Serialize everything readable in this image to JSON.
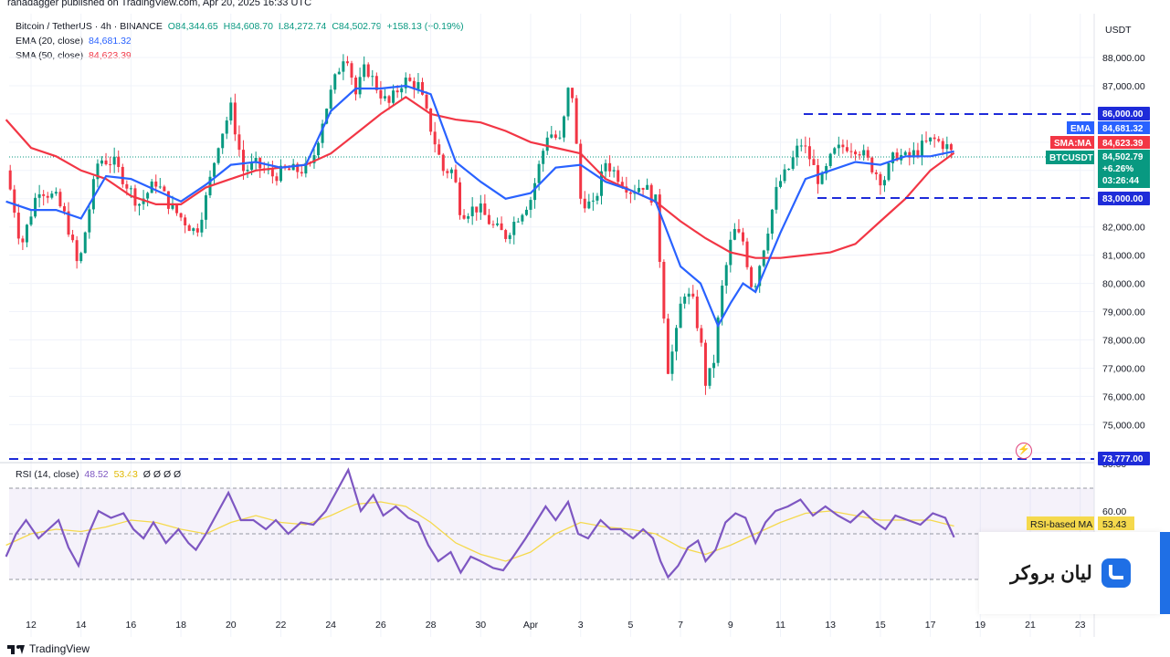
{
  "header": {
    "published": "ranadagger published on TradingView.com, Apr 20, 2025 16:33 UTC",
    "symbol": "Bitcoin / TetherUS · 4h · BINANCE",
    "open": "O84,344.65",
    "high": "H84,608.70",
    "low": "L84,272.74",
    "close": "C84,502.79",
    "change": "+158.13 (+0.19%)",
    "ema_label": "EMA (20, close)",
    "ema_value": "84,681.32",
    "sma_label": "SMA (50, close)",
    "sma_value": "84,623.39"
  },
  "rsi_legend": {
    "label": "RSI (14, close)",
    "rsi_value": "48.52",
    "ma_value": "53.43",
    "extra": "Ø Ø Ø Ø"
  },
  "price_axis": {
    "currency": "USDT",
    "ticks": [
      "88,000.00",
      "87,000.00",
      "86,000.00",
      "85,000.00",
      "84,000.00",
      "83,000.00",
      "82,000.00",
      "81,000.00",
      "80,000.00",
      "79,000.00",
      "78,000.00",
      "77,000.00",
      "76,000.00",
      "75,000.00",
      "74,000.00"
    ],
    "labels": {
      "resistance": "86,000.00",
      "support": "83,000.00",
      "bottom": "73,777.00",
      "ema_tag": "EMA",
      "ema_val": "84,681.32",
      "sma_tag": "SMA:MA",
      "sma_val": "84,623.39",
      "sym_tag": "BTCUSDT",
      "price_val": "84,502.79",
      "pct_val": "+6.26%",
      "timer_val": "03:26:44"
    }
  },
  "rsi_axis": {
    "ticks": [
      "80.00",
      "60.00"
    ],
    "rsi_ma_tag": "RSI-based MA",
    "rsi_ma_val": "53.43"
  },
  "time_axis": {
    "labels": [
      "12",
      "14",
      "16",
      "18",
      "20",
      "22",
      "24",
      "26",
      "28",
      "30",
      "Apr",
      "3",
      "5",
      "7",
      "9",
      "11",
      "13",
      "15",
      "17",
      "19",
      "21",
      "23"
    ]
  },
  "broker": {
    "name": "لیان بروکر"
  },
  "footer": {
    "brand": "TradingView"
  },
  "colors": {
    "up": "#089981",
    "down": "#f23645",
    "ema": "#2962ff",
    "sma": "#f23645",
    "rsi": "#7e57c2",
    "rsi_ma": "#f5d94c",
    "level": "#1e2bd9"
  },
  "chart_data": {
    "type": "candlestick",
    "timeframe": "4h",
    "y_range": [
      74000,
      88500
    ],
    "levels": [
      86000,
      83000,
      73777
    ],
    "keypoints": [
      {
        "d": 11.0,
        "p": 84000
      },
      {
        "d": 11.3,
        "p": 82800
      },
      {
        "d": 11.6,
        "p": 81300
      },
      {
        "d": 12.3,
        "p": 83400
      },
      {
        "d": 13.0,
        "p": 83000
      },
      {
        "d": 13.4,
        "p": 82300
      },
      {
        "d": 13.9,
        "p": 80500
      },
      {
        "d": 14.4,
        "p": 83000
      },
      {
        "d": 14.7,
        "p": 84400
      },
      {
        "d": 15.3,
        "p": 84300
      },
      {
        "d": 16.3,
        "p": 82800
      },
      {
        "d": 17.0,
        "p": 83600
      },
      {
        "d": 17.6,
        "p": 82700
      },
      {
        "d": 18.6,
        "p": 81800
      },
      {
        "d": 19.0,
        "p": 83000
      },
      {
        "d": 19.5,
        "p": 85000
      },
      {
        "d": 20.0,
        "p": 86200
      },
      {
        "d": 20.5,
        "p": 84000
      },
      {
        "d": 21.0,
        "p": 84200
      },
      {
        "d": 21.7,
        "p": 83800
      },
      {
        "d": 22.2,
        "p": 84000
      },
      {
        "d": 22.7,
        "p": 84000
      },
      {
        "d": 23.2,
        "p": 84100
      },
      {
        "d": 23.7,
        "p": 85900
      },
      {
        "d": 24.2,
        "p": 87300
      },
      {
        "d": 24.6,
        "p": 88300
      },
      {
        "d": 25.0,
        "p": 86700
      },
      {
        "d": 25.4,
        "p": 87700
      },
      {
        "d": 25.8,
        "p": 87000
      },
      {
        "d": 26.3,
        "p": 86300
      },
      {
        "d": 26.9,
        "p": 87200
      },
      {
        "d": 27.5,
        "p": 87000
      },
      {
        "d": 28.0,
        "p": 85500
      },
      {
        "d": 28.5,
        "p": 84000
      },
      {
        "d": 28.9,
        "p": 84000
      },
      {
        "d": 29.2,
        "p": 82500
      },
      {
        "d": 29.9,
        "p": 82700
      },
      {
        "d": 30.5,
        "p": 82000
      },
      {
        "d": 31.0,
        "p": 81700
      },
      {
        "d": 31.5,
        "p": 82400
      },
      {
        "d": 32.0,
        "p": 83000
      },
      {
        "d": 32.7,
        "p": 85400
      },
      {
        "d": 33.2,
        "p": 85000
      },
      {
        "d": 33.6,
        "p": 87400
      },
      {
        "d": 34.0,
        "p": 83000
      },
      {
        "d": 34.5,
        "p": 82700
      },
      {
        "d": 35.0,
        "p": 84300
      },
      {
        "d": 36.0,
        "p": 83300
      },
      {
        "d": 36.5,
        "p": 83500
      },
      {
        "d": 37.0,
        "p": 82900
      },
      {
        "d": 37.2,
        "p": 80500
      },
      {
        "d": 37.5,
        "p": 77000
      },
      {
        "d": 37.8,
        "p": 78000
      },
      {
        "d": 38.1,
        "p": 79800
      },
      {
        "d": 38.5,
        "p": 79300
      },
      {
        "d": 38.8,
        "p": 78000
      },
      {
        "d": 39.0,
        "p": 76500
      },
      {
        "d": 39.3,
        "p": 77000
      },
      {
        "d": 39.6,
        "p": 79500
      },
      {
        "d": 40.1,
        "p": 81900
      },
      {
        "d": 40.5,
        "p": 81500
      },
      {
        "d": 40.9,
        "p": 79700
      },
      {
        "d": 41.3,
        "p": 81200
      },
      {
        "d": 41.9,
        "p": 83500
      },
      {
        "d": 42.3,
        "p": 84000
      },
      {
        "d": 42.8,
        "p": 85000
      },
      {
        "d": 43.1,
        "p": 84600
      },
      {
        "d": 43.6,
        "p": 83500
      },
      {
        "d": 44.1,
        "p": 84600
      },
      {
        "d": 44.6,
        "p": 84900
      },
      {
        "d": 45.1,
        "p": 84800
      },
      {
        "d": 45.6,
        "p": 84200
      },
      {
        "d": 46.1,
        "p": 83600
      },
      {
        "d": 46.6,
        "p": 84600
      },
      {
        "d": 47.1,
        "p": 84400
      },
      {
        "d": 47.6,
        "p": 84800
      },
      {
        "d": 48.1,
        "p": 85100
      },
      {
        "d": 48.6,
        "p": 84900
      },
      {
        "d": 48.95,
        "p": 84500
      }
    ],
    "ema20_points": [
      {
        "d": 11.0,
        "p": 82900
      },
      {
        "d": 12.0,
        "p": 82600
      },
      {
        "d": 13.0,
        "p": 82600
      },
      {
        "d": 14.0,
        "p": 82300
      },
      {
        "d": 15.0,
        "p": 83800
      },
      {
        "d": 16.0,
        "p": 83700
      },
      {
        "d": 17.0,
        "p": 83300
      },
      {
        "d": 18.0,
        "p": 82900
      },
      {
        "d": 19.0,
        "p": 83500
      },
      {
        "d": 20.0,
        "p": 84200
      },
      {
        "d": 21.0,
        "p": 84300
      },
      {
        "d": 22.0,
        "p": 84100
      },
      {
        "d": 23.0,
        "p": 84200
      },
      {
        "d": 24.0,
        "p": 86100
      },
      {
        "d": 25.0,
        "p": 86900
      },
      {
        "d": 26.0,
        "p": 86900
      },
      {
        "d": 27.0,
        "p": 87000
      },
      {
        "d": 28.0,
        "p": 86700
      },
      {
        "d": 29.0,
        "p": 84300
      },
      {
        "d": 30.0,
        "p": 83600
      },
      {
        "d": 31.0,
        "p": 83000
      },
      {
        "d": 32.0,
        "p": 83200
      },
      {
        "d": 33.0,
        "p": 84100
      },
      {
        "d": 34.0,
        "p": 84200
      },
      {
        "d": 35.0,
        "p": 83600
      },
      {
        "d": 36.0,
        "p": 83300
      },
      {
        "d": 37.0,
        "p": 82900
      },
      {
        "d": 38.0,
        "p": 80600
      },
      {
        "d": 38.8,
        "p": 80000
      },
      {
        "d": 39.5,
        "p": 78500
      },
      {
        "d": 40.0,
        "p": 79300
      },
      {
        "d": 40.5,
        "p": 80000
      },
      {
        "d": 41.0,
        "p": 79700
      },
      {
        "d": 42.0,
        "p": 81800
      },
      {
        "d": 43.0,
        "p": 83700
      },
      {
        "d": 44.0,
        "p": 84000
      },
      {
        "d": 45.0,
        "p": 84300
      },
      {
        "d": 46.0,
        "p": 84200
      },
      {
        "d": 47.0,
        "p": 84500
      },
      {
        "d": 48.0,
        "p": 84500
      },
      {
        "d": 48.95,
        "p": 84680
      }
    ],
    "sma50_points": [
      {
        "d": 11.0,
        "p": 85800
      },
      {
        "d": 12.0,
        "p": 84800
      },
      {
        "d": 13.0,
        "p": 84500
      },
      {
        "d": 14.0,
        "p": 84000
      },
      {
        "d": 15.0,
        "p": 83700
      },
      {
        "d": 16.0,
        "p": 83100
      },
      {
        "d": 17.0,
        "p": 82800
      },
      {
        "d": 18.0,
        "p": 82800
      },
      {
        "d": 19.0,
        "p": 83400
      },
      {
        "d": 20.0,
        "p": 83700
      },
      {
        "d": 21.0,
        "p": 84000
      },
      {
        "d": 22.0,
        "p": 84100
      },
      {
        "d": 23.0,
        "p": 84200
      },
      {
        "d": 24.0,
        "p": 84600
      },
      {
        "d": 25.0,
        "p": 85300
      },
      {
        "d": 26.0,
        "p": 86000
      },
      {
        "d": 27.0,
        "p": 86600
      },
      {
        "d": 28.0,
        "p": 86000
      },
      {
        "d": 29.0,
        "p": 85800
      },
      {
        "d": 30.0,
        "p": 85700
      },
      {
        "d": 31.0,
        "p": 85400
      },
      {
        "d": 32.0,
        "p": 85000
      },
      {
        "d": 33.0,
        "p": 84800
      },
      {
        "d": 34.0,
        "p": 84600
      },
      {
        "d": 35.0,
        "p": 83700
      },
      {
        "d": 36.0,
        "p": 83300
      },
      {
        "d": 37.0,
        "p": 82900
      },
      {
        "d": 38.0,
        "p": 82200
      },
      {
        "d": 39.0,
        "p": 81600
      },
      {
        "d": 40.0,
        "p": 81100
      },
      {
        "d": 41.0,
        "p": 80900
      },
      {
        "d": 42.0,
        "p": 80900
      },
      {
        "d": 43.0,
        "p": 81000
      },
      {
        "d": 44.0,
        "p": 81100
      },
      {
        "d": 45.0,
        "p": 81400
      },
      {
        "d": 46.0,
        "p": 82200
      },
      {
        "d": 47.0,
        "p": 83000
      },
      {
        "d": 48.0,
        "p": 84000
      },
      {
        "d": 48.95,
        "p": 84620
      }
    ],
    "rsi_points": [
      {
        "d": 11.0,
        "v": 40
      },
      {
        "d": 11.4,
        "v": 50
      },
      {
        "d": 11.8,
        "v": 56
      },
      {
        "d": 12.3,
        "v": 48
      },
      {
        "d": 12.7,
        "v": 52
      },
      {
        "d": 13.1,
        "v": 56
      },
      {
        "d": 13.5,
        "v": 44
      },
      {
        "d": 13.9,
        "v": 36
      },
      {
        "d": 14.3,
        "v": 50
      },
      {
        "d": 14.7,
        "v": 60
      },
      {
        "d": 15.2,
        "v": 57
      },
      {
        "d": 15.7,
        "v": 59
      },
      {
        "d": 16.1,
        "v": 52
      },
      {
        "d": 16.5,
        "v": 48
      },
      {
        "d": 16.9,
        "v": 55
      },
      {
        "d": 17.4,
        "v": 46
      },
      {
        "d": 17.9,
        "v": 52
      },
      {
        "d": 18.3,
        "v": 46
      },
      {
        "d": 18.6,
        "v": 43
      },
      {
        "d": 19.0,
        "v": 50
      },
      {
        "d": 19.5,
        "v": 60
      },
      {
        "d": 19.9,
        "v": 68
      },
      {
        "d": 20.4,
        "v": 56
      },
      {
        "d": 20.9,
        "v": 56
      },
      {
        "d": 21.4,
        "v": 52
      },
      {
        "d": 21.8,
        "v": 56
      },
      {
        "d": 22.3,
        "v": 50
      },
      {
        "d": 22.8,
        "v": 55
      },
      {
        "d": 23.3,
        "v": 54
      },
      {
        "d": 23.8,
        "v": 60
      },
      {
        "d": 24.3,
        "v": 70
      },
      {
        "d": 24.7,
        "v": 78
      },
      {
        "d": 25.2,
        "v": 60
      },
      {
        "d": 25.7,
        "v": 67
      },
      {
        "d": 26.1,
        "v": 58
      },
      {
        "d": 26.6,
        "v": 62
      },
      {
        "d": 27.1,
        "v": 57
      },
      {
        "d": 27.5,
        "v": 55
      },
      {
        "d": 27.9,
        "v": 45
      },
      {
        "d": 28.3,
        "v": 38
      },
      {
        "d": 28.8,
        "v": 42
      },
      {
        "d": 29.2,
        "v": 33
      },
      {
        "d": 29.6,
        "v": 40
      },
      {
        "d": 30.0,
        "v": 38
      },
      {
        "d": 30.5,
        "v": 35
      },
      {
        "d": 30.9,
        "v": 34
      },
      {
        "d": 31.3,
        "v": 40
      },
      {
        "d": 31.8,
        "v": 48
      },
      {
        "d": 32.2,
        "v": 55
      },
      {
        "d": 32.6,
        "v": 62
      },
      {
        "d": 33.0,
        "v": 56
      },
      {
        "d": 33.5,
        "v": 64
      },
      {
        "d": 33.9,
        "v": 50
      },
      {
        "d": 34.3,
        "v": 48
      },
      {
        "d": 34.8,
        "v": 56
      },
      {
        "d": 35.2,
        "v": 52
      },
      {
        "d": 35.6,
        "v": 52
      },
      {
        "d": 36.1,
        "v": 48
      },
      {
        "d": 36.5,
        "v": 52
      },
      {
        "d": 36.9,
        "v": 48
      },
      {
        "d": 37.2,
        "v": 38
      },
      {
        "d": 37.5,
        "v": 31
      },
      {
        "d": 37.9,
        "v": 36
      },
      {
        "d": 38.3,
        "v": 44
      },
      {
        "d": 38.7,
        "v": 47
      },
      {
        "d": 39.0,
        "v": 38
      },
      {
        "d": 39.4,
        "v": 43
      },
      {
        "d": 39.8,
        "v": 55
      },
      {
        "d": 40.2,
        "v": 59
      },
      {
        "d": 40.6,
        "v": 57
      },
      {
        "d": 41.0,
        "v": 46
      },
      {
        "d": 41.4,
        "v": 55
      },
      {
        "d": 41.8,
        "v": 60
      },
      {
        "d": 42.3,
        "v": 62
      },
      {
        "d": 42.8,
        "v": 65
      },
      {
        "d": 43.3,
        "v": 58
      },
      {
        "d": 43.8,
        "v": 62
      },
      {
        "d": 44.3,
        "v": 58
      },
      {
        "d": 44.8,
        "v": 55
      },
      {
        "d": 45.3,
        "v": 60
      },
      {
        "d": 45.8,
        "v": 55
      },
      {
        "d": 46.2,
        "v": 52
      },
      {
        "d": 46.6,
        "v": 58
      },
      {
        "d": 47.1,
        "v": 56
      },
      {
        "d": 47.6,
        "v": 54
      },
      {
        "d": 48.1,
        "v": 59
      },
      {
        "d": 48.6,
        "v": 57
      },
      {
        "d": 48.95,
        "v": 48.5
      }
    ],
    "rsi_ma_points": [
      {
        "d": 11.0,
        "v": 45
      },
      {
        "d": 12.0,
        "v": 50
      },
      {
        "d": 13.0,
        "v": 52
      },
      {
        "d": 14.0,
        "v": 51
      },
      {
        "d": 15.0,
        "v": 53
      },
      {
        "d": 16.0,
        "v": 56
      },
      {
        "d": 17.0,
        "v": 55
      },
      {
        "d": 18.0,
        "v": 52
      },
      {
        "d": 19.0,
        "v": 50
      },
      {
        "d": 20.0,
        "v": 55
      },
      {
        "d": 21.0,
        "v": 58
      },
      {
        "d": 22.0,
        "v": 55
      },
      {
        "d": 23.0,
        "v": 54
      },
      {
        "d": 24.0,
        "v": 58
      },
      {
        "d": 25.0,
        "v": 63
      },
      {
        "d": 26.0,
        "v": 64
      },
      {
        "d": 27.0,
        "v": 62
      },
      {
        "d": 28.0,
        "v": 55
      },
      {
        "d": 29.0,
        "v": 46
      },
      {
        "d": 30.0,
        "v": 41
      },
      {
        "d": 31.0,
        "v": 38
      },
      {
        "d": 32.0,
        "v": 42
      },
      {
        "d": 33.0,
        "v": 50
      },
      {
        "d": 34.0,
        "v": 55
      },
      {
        "d": 35.0,
        "v": 53
      },
      {
        "d": 36.0,
        "v": 52
      },
      {
        "d": 37.0,
        "v": 50
      },
      {
        "d": 38.0,
        "v": 44
      },
      {
        "d": 39.0,
        "v": 41
      },
      {
        "d": 40.0,
        "v": 45
      },
      {
        "d": 41.0,
        "v": 50
      },
      {
        "d": 42.0,
        "v": 55
      },
      {
        "d": 43.0,
        "v": 59
      },
      {
        "d": 44.0,
        "v": 60
      },
      {
        "d": 45.0,
        "v": 58
      },
      {
        "d": 46.0,
        "v": 56
      },
      {
        "d": 47.0,
        "v": 56
      },
      {
        "d": 48.0,
        "v": 56
      },
      {
        "d": 48.95,
        "v": 53.4
      }
    ]
  }
}
